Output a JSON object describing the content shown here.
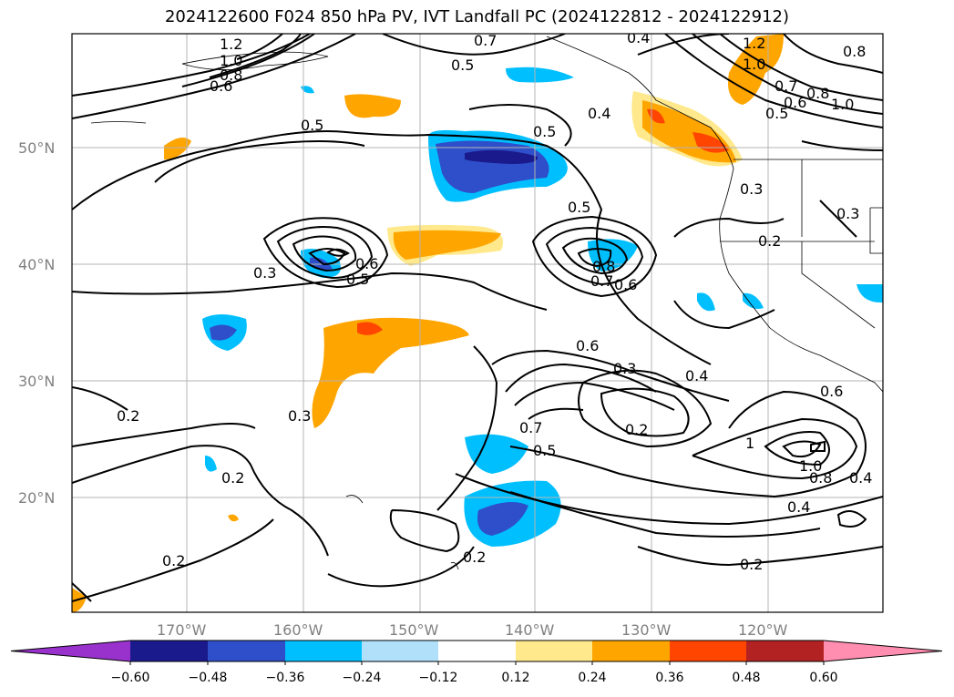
{
  "title": "2024122600 F024 850 hPa PV, IVT Landfall PC (2024122812 - 2024122912)",
  "axes": {
    "lat_labels": [
      "50°N",
      "40°N",
      "30°N",
      "20°N"
    ],
    "lon_labels": [
      "170°W",
      "160°W",
      "150°W",
      "140°W",
      "130°W",
      "120°W"
    ]
  },
  "contour_labels": [
    {
      "text": "1.2"
    },
    {
      "text": "1.0"
    },
    {
      "text": "0.8"
    },
    {
      "text": "0.6"
    },
    {
      "text": "0.7"
    },
    {
      "text": "0.5"
    },
    {
      "text": "0.4"
    },
    {
      "text": "0.5"
    },
    {
      "text": "0.5"
    },
    {
      "text": "0.4"
    },
    {
      "text": "1.2"
    },
    {
      "text": "1.0"
    },
    {
      "text": "0.8"
    },
    {
      "text": "0.7"
    },
    {
      "text": "0.6"
    },
    {
      "text": "0.5"
    },
    {
      "text": "0.8"
    },
    {
      "text": "1.0"
    },
    {
      "text": "0.3"
    },
    {
      "text": "0.3"
    },
    {
      "text": "0.2"
    },
    {
      "text": "0.5"
    },
    {
      "text": "0.3"
    },
    {
      "text": "0.6"
    },
    {
      "text": "0.5"
    },
    {
      "text": "0.8"
    },
    {
      "text": "0.7"
    },
    {
      "text": "0.6"
    },
    {
      "text": "0.6"
    },
    {
      "text": "0.3"
    },
    {
      "text": "0.4"
    },
    {
      "text": "0.7"
    },
    {
      "text": "0.5"
    },
    {
      "text": "0.2"
    },
    {
      "text": "0.6"
    },
    {
      "text": "1"
    },
    {
      "text": "1.0"
    },
    {
      "text": "0.8"
    },
    {
      "text": "0.4"
    },
    {
      "text": "0.4"
    },
    {
      "text": "0.2"
    },
    {
      "text": "0.3"
    },
    {
      "text": "0.2"
    },
    {
      "text": "0.2"
    },
    {
      "text": "0.2"
    },
    {
      "text": "0.2"
    }
  ],
  "colorbar": {
    "colors": [
      "#9932cc",
      "#1a1a8c",
      "#2e4fc9",
      "#00bfff",
      "#b0e0fa",
      "#ffffff",
      "#ffe98c",
      "#ffa500",
      "#ff4500",
      "#b22222",
      "#ff8eb0"
    ],
    "ticks": [
      "−0.60",
      "−0.48",
      "−0.36",
      "−0.24",
      "−0.12",
      "0.12",
      "0.24",
      "0.36",
      "0.48",
      "0.60"
    ]
  }
}
